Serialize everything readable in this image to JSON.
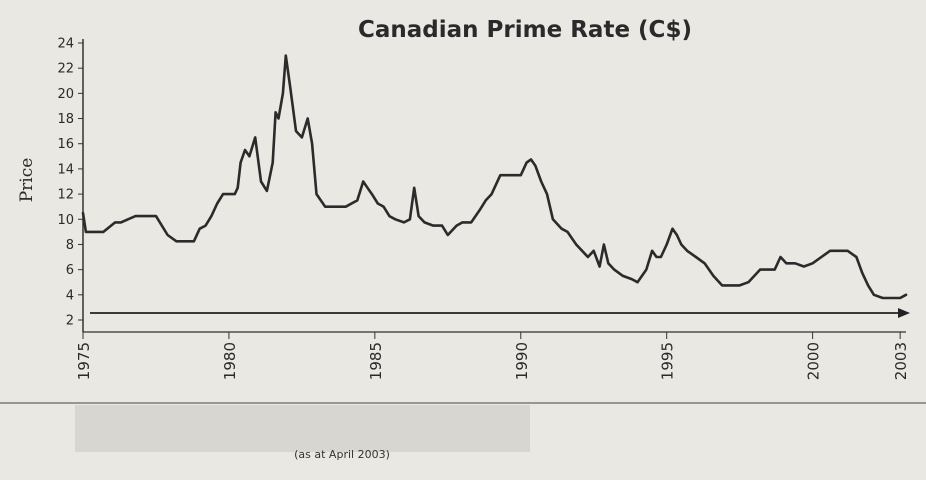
{
  "chart_data": {
    "type": "line",
    "title": "Canadian Prime Rate (C$)",
    "xlabel": "",
    "ylabel": "Price",
    "ylim": [
      2,
      24
    ],
    "xlim": [
      1975,
      2003.2
    ],
    "yticks": [
      2,
      4,
      6,
      8,
      10,
      12,
      14,
      16,
      18,
      20,
      22,
      24
    ],
    "xticks": [
      "1975",
      "1980",
      "1985",
      "1990",
      "1995",
      "2000",
      "2003"
    ],
    "grid": false,
    "note": "(as at April 2003)",
    "series": [
      {
        "x": [
          1975.0,
          1975.1,
          1975.5,
          1975.7,
          1976.1,
          1976.3,
          1976.8,
          1977.0,
          1977.2,
          1977.5,
          1977.9,
          1978.2,
          1978.5,
          1978.8,
          1979.0,
          1979.2,
          1979.4,
          1979.6,
          1979.8,
          1980.0,
          1980.2,
          1980.3,
          1980.4,
          1980.55,
          1980.7,
          1980.9,
          1981.1,
          1981.3,
          1981.5,
          1981.6,
          1981.7,
          1981.85,
          1981.95,
          1982.1,
          1982.3,
          1982.5,
          1982.7,
          1982.85,
          1983.0,
          1983.3,
          1983.6,
          1984.0,
          1984.4,
          1984.6,
          1984.75,
          1984.9,
          1985.1,
          1985.3,
          1985.5,
          1985.7,
          1986.0,
          1986.2,
          1986.35,
          1986.5,
          1986.7,
          1987.0,
          1987.3,
          1987.5,
          1987.8,
          1988.0,
          1988.3,
          1988.6,
          1988.8,
          1989.0,
          1989.3,
          1989.7,
          1990.0,
          1990.2,
          1990.35,
          1990.5,
          1990.7,
          1990.9,
          1991.1,
          1991.4,
          1991.6,
          1991.9,
          1992.1,
          1992.3,
          1992.5,
          1992.7,
          1992.85,
          1993.0,
          1993.2,
          1993.5,
          1993.8,
          1994.0,
          1994.3,
          1994.5,
          1994.65,
          1994.8,
          1995.0,
          1995.2,
          1995.35,
          1995.5,
          1995.7,
          1996.0,
          1996.3,
          1996.6,
          1996.9,
          1997.2,
          1997.5,
          1997.8,
          1998.2,
          1998.5,
          1998.7,
          1998.9,
          1999.1,
          1999.4,
          1999.7,
          2000.0,
          2000.3,
          2000.6,
          2000.9,
          2001.2,
          2001.5,
          2001.7,
          2001.9,
          2002.1,
          2002.4,
          2002.7,
          2003.0,
          2003.2
        ],
        "values": [
          10.5,
          9.0,
          9.0,
          9.0,
          9.75,
          9.75,
          10.25,
          10.25,
          10.25,
          10.25,
          8.75,
          8.25,
          8.25,
          8.25,
          9.25,
          9.5,
          10.25,
          11.25,
          12.0,
          12.0,
          12.0,
          12.5,
          14.5,
          15.5,
          15.0,
          16.5,
          13.0,
          12.25,
          14.5,
          18.5,
          18.0,
          20.0,
          23.0,
          20.5,
          17.0,
          16.5,
          18.0,
          16.0,
          12.0,
          11.0,
          11.0,
          11.0,
          11.5,
          13.0,
          12.5,
          12.0,
          11.25,
          11.0,
          10.25,
          10.0,
          9.75,
          10.0,
          12.5,
          10.25,
          9.75,
          9.5,
          9.5,
          8.75,
          9.5,
          9.75,
          9.75,
          10.75,
          11.5,
          12.0,
          13.5,
          13.5,
          13.5,
          14.5,
          14.75,
          14.25,
          13.0,
          12.0,
          10.0,
          9.25,
          9.0,
          8.0,
          7.5,
          7.0,
          7.5,
          6.25,
          8.0,
          6.5,
          6.0,
          5.5,
          5.25,
          5.0,
          6.0,
          7.5,
          7.0,
          7.0,
          8.0,
          9.25,
          8.75,
          8.0,
          7.5,
          7.0,
          6.5,
          5.5,
          4.75,
          4.75,
          4.75,
          5.0,
          6.0,
          6.0,
          6.0,
          7.0,
          6.5,
          6.5,
          6.25,
          6.5,
          7.0,
          7.5,
          7.5,
          7.5,
          7.0,
          5.75,
          4.75,
          4.0,
          3.75,
          3.75,
          3.75,
          4.0
        ]
      }
    ]
  }
}
